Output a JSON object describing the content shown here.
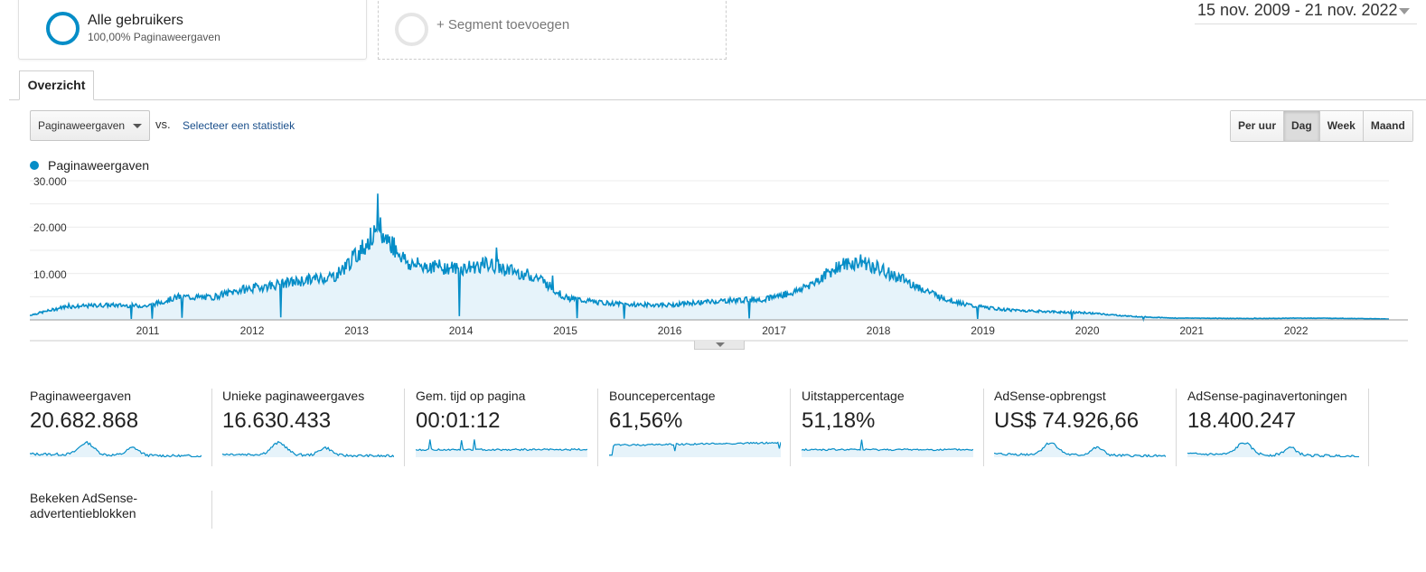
{
  "segments": {
    "active": {
      "title": "Alle gebruikers",
      "subtitle": "100,00% Paginaweergaven"
    },
    "add_label": "+ Segment toevoegen"
  },
  "date_range": "15 nov. 2009 - 21 nov. 2022",
  "tabs": [
    {
      "label": "Overzicht",
      "active": true
    }
  ],
  "controls": {
    "metric": "Paginaweergaven",
    "vs": "vs.",
    "select_metric": "Selecteer een statistiek",
    "granularity": [
      "Per uur",
      "Dag",
      "Week",
      "Maand"
    ],
    "granularity_active": "Dag"
  },
  "colors": {
    "series": "#058dc7",
    "fill": "#e6f3fa"
  },
  "chart_data": {
    "type": "area",
    "series": [
      {
        "name": "Paginaweergaven"
      }
    ],
    "y_ticks": [
      "30.000",
      "20.000",
      "10.000"
    ],
    "ylim": [
      0,
      30000
    ],
    "x_ticks": [
      "2011",
      "2012",
      "2013",
      "2014",
      "2015",
      "2016",
      "2017",
      "2018",
      "2019",
      "2020",
      "2021",
      "2022"
    ],
    "x": [
      2009.87,
      2010.2,
      2010.6,
      2011.0,
      2011.3,
      2011.6,
      2011.9,
      2012.2,
      2012.5,
      2012.8,
      2013.0,
      2013.15,
      2013.3,
      2013.5,
      2013.75,
      2014.0,
      2014.25,
      2014.5,
      2014.75,
      2015.0,
      2015.3,
      2015.6,
      2016.0,
      2016.3,
      2016.6,
      2016.9,
      2017.2,
      2017.45,
      2017.6,
      2017.85,
      2018.1,
      2018.35,
      2018.6,
      2018.9,
      2019.2,
      2019.6,
      2020.0,
      2020.4,
      2020.8,
      2021.2,
      2021.6,
      2022.0,
      2022.4,
      2022.89
    ],
    "values": [
      1000,
      2800,
      3200,
      3000,
      5000,
      4800,
      6500,
      7500,
      8500,
      9500,
      14000,
      18000,
      17500,
      12000,
      11500,
      11000,
      12000,
      10500,
      9000,
      4800,
      3800,
      3300,
      3200,
      3800,
      4200,
      4500,
      6000,
      9000,
      11500,
      12500,
      10000,
      7500,
      4800,
      3000,
      2200,
      1800,
      1500,
      800,
      400,
      350,
      300,
      380,
      350,
      200
    ],
    "grid": true
  },
  "scorecards": [
    {
      "label": "Paginaweergaven",
      "value": "20.682.868"
    },
    {
      "label": "Unieke paginaweergaves",
      "value": "16.630.433"
    },
    {
      "label": "Gem. tijd op pagina",
      "value": "00:01:12"
    },
    {
      "label": "Bouncepercentage",
      "value": "61,56%"
    },
    {
      "label": "Uitstappercentage",
      "value": "51,18%"
    },
    {
      "label": "AdSense-opbrengst",
      "value": "US$ 74.926,66"
    },
    {
      "label": "AdSense-paginavertoningen",
      "value": "18.400.247"
    },
    {
      "label": "Bekeken AdSense-advertentieblokken",
      "value": ""
    }
  ]
}
